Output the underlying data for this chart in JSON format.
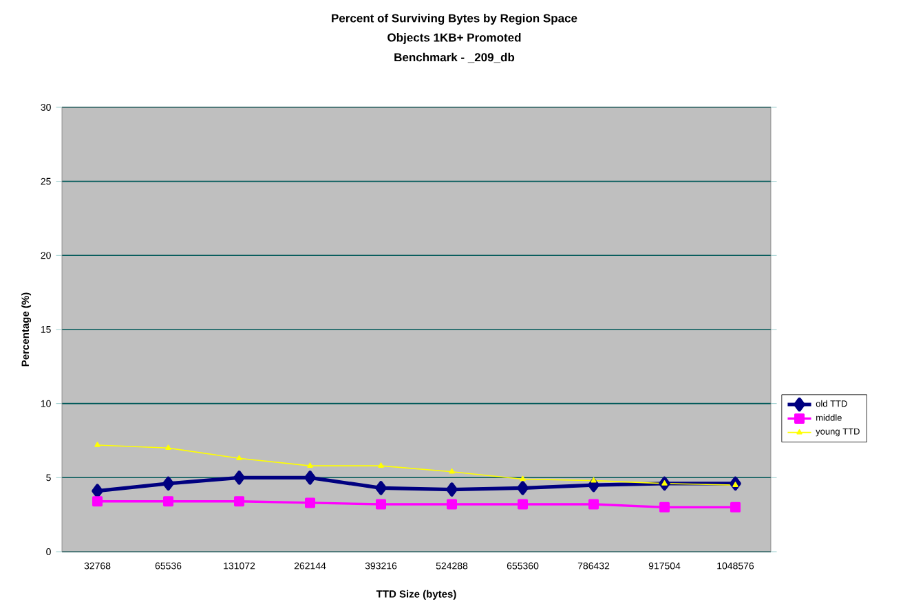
{
  "chart_data": {
    "type": "line",
    "title": "Percent of Surviving Bytes by Region Space",
    "subtitle": "Objects 1KB+ Promoted",
    "annotations": [
      "Benchmark - _209_db"
    ],
    "xlabel": "TTD Size (bytes)",
    "ylabel": "Percentage (%)",
    "categories": [
      "32768",
      "65536",
      "131072",
      "262144",
      "393216",
      "524288",
      "655360",
      "786432",
      "917504",
      "1048576"
    ],
    "series": [
      {
        "name": "old TTD",
        "color": "#000080",
        "marker": "diamond",
        "values": [
          4.1,
          4.6,
          5.0,
          5.0,
          4.3,
          4.2,
          4.3,
          4.5,
          4.6,
          4.6
        ]
      },
      {
        "name": "middle",
        "color": "#ff00ff",
        "marker": "square",
        "values": [
          3.4,
          3.4,
          3.4,
          3.3,
          3.2,
          3.2,
          3.2,
          3.2,
          3.0,
          3.0
        ]
      },
      {
        "name": "young TTD",
        "color": "#ffff00",
        "marker": "triangle",
        "values": [
          7.2,
          7.0,
          6.3,
          5.8,
          5.8,
          5.4,
          4.9,
          4.8,
          4.6,
          4.5
        ]
      }
    ],
    "ylim": [
      0,
      30
    ],
    "yticks": [
      0,
      5,
      10,
      15,
      20,
      25,
      30
    ],
    "grid": "y",
    "legend": "right"
  }
}
